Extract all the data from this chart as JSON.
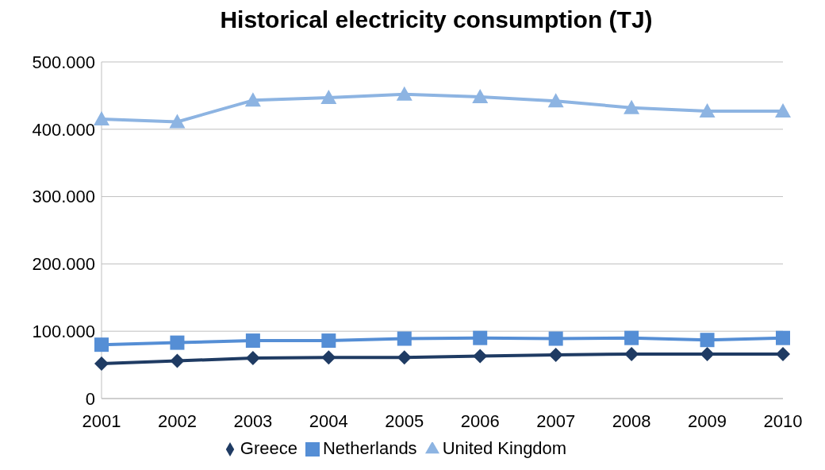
{
  "chart_data": {
    "type": "line",
    "title": "Historical electricity consumption (TJ)",
    "categories": [
      "2001",
      "2002",
      "2003",
      "2004",
      "2005",
      "2006",
      "2007",
      "2008",
      "2009",
      "2010"
    ],
    "series": [
      {
        "name": "Greece",
        "color": "#1f3b63",
        "marker": "diamond",
        "values": [
          52000,
          56000,
          60000,
          61000,
          61000,
          63000,
          65000,
          66000,
          66000,
          66000
        ]
      },
      {
        "name": "Netherlands",
        "color": "#558ed5",
        "marker": "square",
        "values": [
          80000,
          83000,
          86000,
          86000,
          89000,
          90000,
          89000,
          90000,
          87000,
          90000
        ]
      },
      {
        "name": "United Kingdom",
        "color": "#8db4e2",
        "marker": "triangle",
        "values": [
          415000,
          411000,
          443000,
          447000,
          452000,
          448000,
          442000,
          432000,
          427000,
          427000
        ]
      }
    ],
    "ylim": [
      0,
      500000
    ],
    "yticks": [
      0,
      {
        "value": 100000,
        "label": "100.000"
      },
      {
        "value": 200000,
        "label": "200.000"
      },
      {
        "value": 300000,
        "label": "300.000"
      },
      {
        "value": 400000,
        "label": "400.000"
      },
      {
        "value": 500000,
        "label": "500.000"
      }
    ],
    "grid": "y",
    "legend": "bottom"
  }
}
